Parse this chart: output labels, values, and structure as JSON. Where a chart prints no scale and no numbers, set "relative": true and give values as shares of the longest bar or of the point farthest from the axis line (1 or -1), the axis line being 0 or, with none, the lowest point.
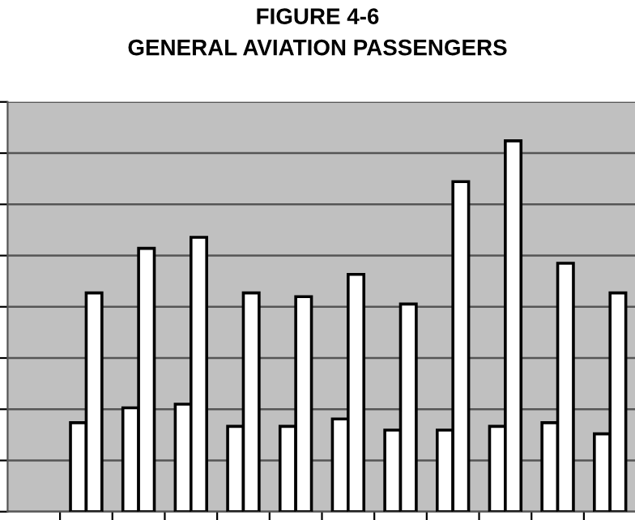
{
  "chart_data": {
    "type": "bar",
    "title": "FIGURE 4-6",
    "subtitle": "GENERAL AVIATION PASSENGERS",
    "relative": true,
    "categories": [
      null,
      null,
      null,
      null,
      null,
      null,
      null,
      null,
      null,
      null,
      null
    ],
    "series": [
      {
        "color": "#ffffff",
        "values": [
          0.24,
          0.28,
          0.29,
          0.23,
          0.23,
          0.25,
          0.22,
          0.22,
          0.23,
          0.24,
          0.21
        ]
      },
      {
        "color": "#ffffff",
        "values": [
          0.59,
          0.71,
          0.74,
          0.59,
          0.58,
          0.64,
          0.56,
          0.89,
          1,
          0.67,
          0.59
        ]
      }
    ],
    "grid": "y",
    "legend": false
  }
}
